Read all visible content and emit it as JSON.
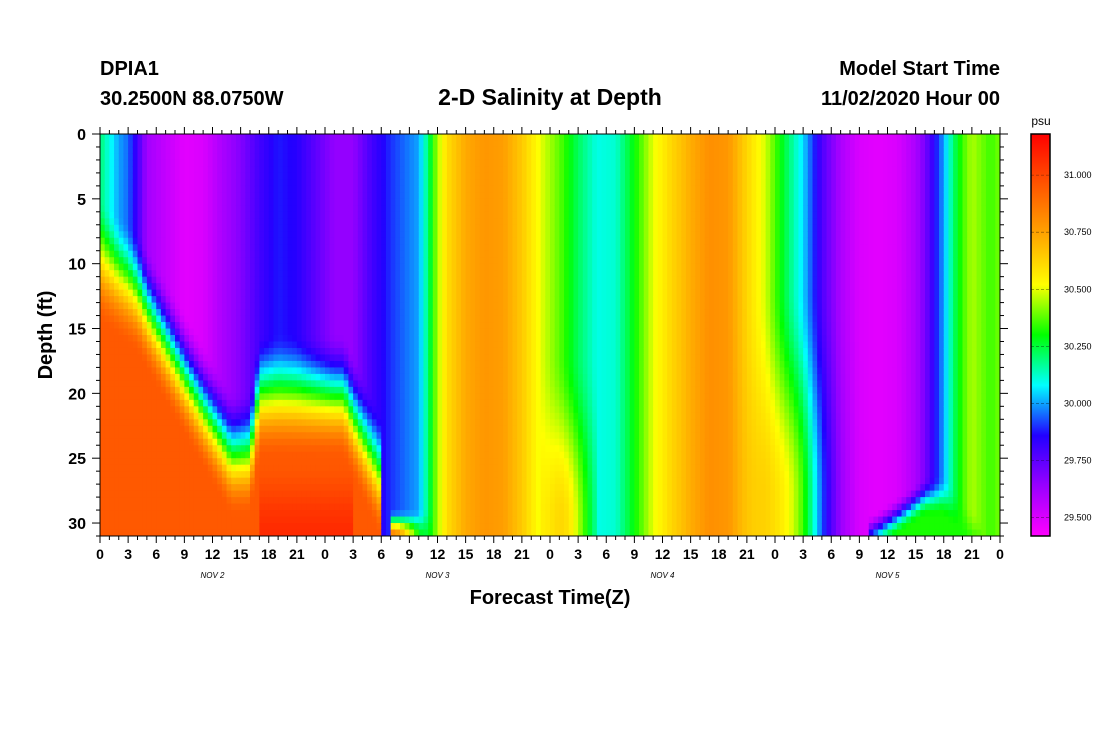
{
  "header": {
    "station": "DPIA1",
    "coords": "30.2500N 88.0750W",
    "title": "2-D Salinity at Depth",
    "start_label": "Model Start Time",
    "start_value": "11/02/2020 Hour 00"
  },
  "chart_data": {
    "type": "heatmap",
    "title": "2-D Salinity at Depth",
    "xlabel": "Forecast Time(Z)",
    "ylabel": "Depth (ft)",
    "x_hours_range": [
      0,
      96
    ],
    "x_tick_labels": [
      "0",
      "3",
      "6",
      "9",
      "12",
      "15",
      "18",
      "21",
      "0",
      "3",
      "6",
      "9",
      "12",
      "15",
      "18",
      "21",
      "0",
      "3",
      "6",
      "9",
      "12",
      "15",
      "18",
      "21",
      "0",
      "3",
      "6",
      "9",
      "12",
      "15",
      "18",
      "21",
      "0"
    ],
    "day_labels": [
      "NOV 2",
      "NOV 3",
      "NOV 4",
      "NOV 5"
    ],
    "ylim": [
      0,
      31
    ],
    "y_ticks": [
      0,
      5,
      10,
      15,
      20,
      25,
      30
    ],
    "colorbar": {
      "unit": "psu",
      "range": [
        29.42,
        31.18
      ],
      "ticks": [
        29.5,
        29.75,
        30.0,
        30.25,
        30.5,
        30.75,
        31.0
      ],
      "tick_labels": [
        "29.500",
        "29.750",
        "30.000",
        "30.250",
        "30.500",
        "30.750",
        "31.000"
      ],
      "colors": [
        "#ff00ff",
        "#9900ff",
        "#2200ff",
        "#00ffff",
        "#00ff00",
        "#ffff00",
        "#ffa500",
        "#ff5500",
        "#ff0000"
      ]
    },
    "surface_salinity_by_hour": [
      [
        0,
        30.2
      ],
      [
        1,
        30.1
      ],
      [
        2,
        30.0
      ],
      [
        3,
        29.95
      ],
      [
        4,
        29.8
      ],
      [
        5,
        29.62
      ],
      [
        7,
        29.55
      ],
      [
        9,
        29.48
      ],
      [
        11,
        29.5
      ],
      [
        13,
        29.6
      ],
      [
        15,
        29.68
      ],
      [
        17,
        29.8
      ],
      [
        19,
        29.88
      ],
      [
        21,
        29.85
      ],
      [
        23,
        29.75
      ],
      [
        25,
        29.65
      ],
      [
        27,
        29.65
      ],
      [
        29,
        29.8
      ],
      [
        31,
        29.9
      ],
      [
        33,
        29.97
      ],
      [
        34,
        30.0
      ],
      [
        35,
        30.2
      ],
      [
        36,
        30.45
      ],
      [
        37,
        30.6
      ],
      [
        39,
        30.73
      ],
      [
        41,
        30.78
      ],
      [
        43,
        30.76
      ],
      [
        45,
        30.65
      ],
      [
        47,
        30.5
      ],
      [
        49,
        30.38
      ],
      [
        51,
        30.22
      ],
      [
        53,
        30.1
      ],
      [
        55,
        30.12
      ],
      [
        57,
        30.3
      ],
      [
        59,
        30.5
      ],
      [
        61,
        30.62
      ],
      [
        63,
        30.72
      ],
      [
        65,
        30.8
      ],
      [
        67,
        30.78
      ],
      [
        69,
        30.62
      ],
      [
        71,
        30.48
      ],
      [
        73,
        30.25
      ],
      [
        75,
        30.05
      ],
      [
        77,
        29.78
      ],
      [
        79,
        29.6
      ],
      [
        81,
        29.5
      ],
      [
        83,
        29.48
      ],
      [
        85,
        29.5
      ],
      [
        87,
        29.6
      ],
      [
        88,
        29.7
      ],
      [
        89,
        29.85
      ],
      [
        90,
        30.0
      ],
      [
        91,
        30.2
      ],
      [
        92,
        30.35
      ],
      [
        93,
        30.45
      ],
      [
        94,
        30.4
      ],
      [
        95,
        30.35
      ],
      [
        96,
        30.4
      ]
    ]
  }
}
